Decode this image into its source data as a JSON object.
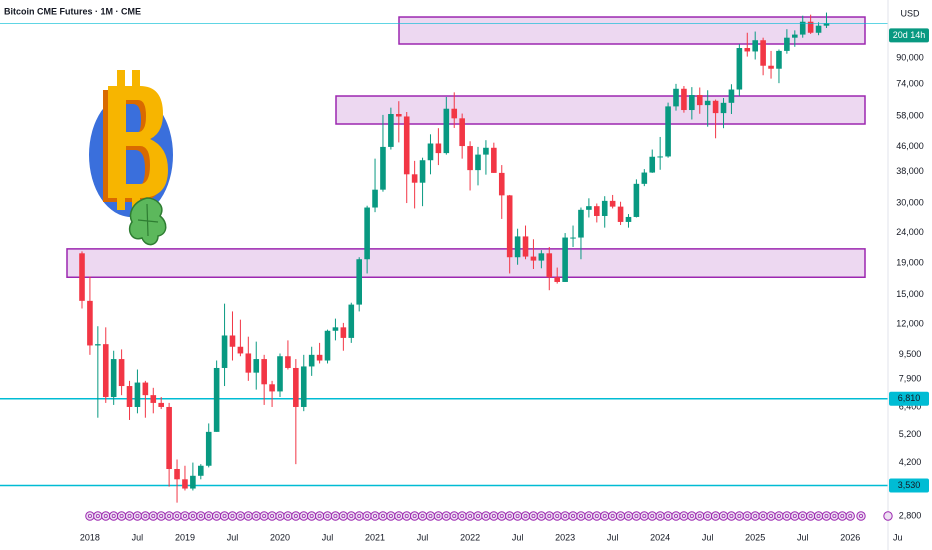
{
  "chart_data": {
    "type": "candlestick",
    "title": "Bitcoin CME Futures · 1M · CME",
    "currency": "USD",
    "countdown": "20d 14h",
    "log_scale": true,
    "grid": false,
    "up_color": "#089981",
    "down_color": "#f23645",
    "categories": [
      null,
      "2018",
      null,
      null,
      null,
      null,
      null,
      "Jul",
      null,
      null,
      null,
      null,
      null,
      "2019",
      null,
      null,
      null,
      null,
      null,
      "Jul",
      null,
      null,
      null,
      null,
      null,
      "2020",
      null,
      null,
      null,
      null,
      null,
      "Jul",
      null,
      null,
      null,
      null,
      null,
      "2021",
      null,
      null,
      null,
      null,
      null,
      "Jul",
      null,
      null,
      null,
      null,
      null,
      "2022",
      null,
      null,
      null,
      null,
      null,
      "Jul",
      null,
      null,
      null,
      null,
      null,
      "2023",
      null,
      null,
      null,
      null,
      null,
      "Jul",
      null,
      null,
      null,
      null,
      null,
      "2024",
      null,
      null,
      null,
      null,
      null,
      "Jul",
      null,
      null,
      null,
      null,
      null,
      "2025",
      null,
      null,
      null,
      null,
      null,
      "Jul",
      null,
      null,
      null,
      null,
      null,
      "2026",
      null,
      null,
      null,
      null,
      null,
      "Ju"
    ],
    "open": [
      20500,
      14300,
      10200,
      10300,
      6900,
      9200,
      7500,
      6400,
      7700,
      7000,
      6600,
      6400,
      4000,
      3700,
      3450,
      3800,
      4100,
      5300,
      8600,
      11000,
      10100,
      9600,
      8300,
      9200,
      7600,
      7200,
      9400,
      8600,
      6400,
      8700,
      9500,
      9100,
      11400,
      11700,
      10800,
      13900,
      19600,
      29000,
      33200,
      45900,
      58900,
      57800,
      37300,
      35000,
      41500,
      47100,
      43800,
      61300,
      57000,
      46200,
      38500,
      43300,
      45600,
      37700,
      31800,
      19900,
      23300,
      20000,
      19400,
      20500,
      17100,
      16500,
      23100,
      23100,
      28500,
      29300,
      27200,
      30500,
      29200,
      26000,
      27000,
      34700,
      37800,
      42600,
      42700,
      62400,
      71300,
      60700,
      68000,
      63000,
      65100,
      59300,
      64100,
      70900,
      97100,
      94600,
      103000,
      84900,
      83000,
      95000,
      105000,
      107500,
      118500,
      109000,
      115000,
      null,
      null,
      null,
      null,
      null,
      null,
      null,
      null,
      null
    ],
    "high": [
      20800,
      17200,
      11800,
      11700,
      9800,
      9900,
      7800,
      8500,
      7800,
      7400,
      6900,
      6600,
      4300,
      4100,
      4200,
      4150,
      5650,
      9100,
      14000,
      13200,
      12400,
      10900,
      10500,
      9500,
      7800,
      9600,
      10600,
      9200,
      9500,
      10100,
      10400,
      11500,
      12500,
      12100,
      14100,
      19900,
      29400,
      42000,
      58500,
      61800,
      64900,
      59800,
      41300,
      42300,
      50500,
      52900,
      67000,
      69400,
      59100,
      47900,
      45900,
      48300,
      47400,
      40000,
      31900,
      24700,
      25300,
      22800,
      21000,
      21500,
      18400,
      23900,
      25300,
      29000,
      31100,
      29900,
      31600,
      31900,
      30300,
      27600,
      35900,
      38800,
      45000,
      49500,
      64200,
      74000,
      72800,
      72200,
      72000,
      70500,
      65700,
      66500,
      73800,
      100000,
      109000,
      110000,
      105000,
      95000,
      96000,
      112000,
      111000,
      124000,
      125000,
      118000,
      127000,
      null,
      null,
      null,
      null,
      null,
      null,
      null,
      null,
      null
    ],
    "low": [
      13500,
      9500,
      5900,
      6600,
      6500,
      7000,
      5800,
      6100,
      5900,
      6100,
      6300,
      3500,
      3100,
      3400,
      3400,
      3700,
      4050,
      5300,
      7500,
      9100,
      9400,
      7800,
      7300,
      6500,
      6400,
      6900,
      8500,
      4150,
      6200,
      8100,
      8900,
      8900,
      10600,
      9800,
      10400,
      13200,
      17600,
      28000,
      32700,
      45000,
      47500,
      30000,
      28800,
      29300,
      37300,
      40000,
      43300,
      53000,
      42000,
      33000,
      34300,
      37200,
      37700,
      26600,
      17600,
      18800,
      19600,
      18200,
      18300,
      15500,
      16300,
      16500,
      21500,
      19600,
      26900,
      25900,
      24900,
      28800,
      25400,
      24900,
      26900,
      34100,
      37700,
      38600,
      42300,
      60400,
      59500,
      56500,
      59000,
      53500,
      49000,
      52900,
      58900,
      67400,
      91000,
      89000,
      79000,
      77000,
      74400,
      93000,
      98000,
      105000,
      108000,
      107000,
      113000,
      null,
      null,
      null,
      null,
      null,
      null,
      null,
      null,
      null
    ],
    "close": [
      14300,
      10200,
      10300,
      6900,
      9200,
      7500,
      6400,
      7700,
      7000,
      6600,
      6400,
      4000,
      3700,
      3450,
      3800,
      4100,
      5300,
      8600,
      11000,
      10100,
      9600,
      8300,
      9200,
      7600,
      7200,
      9400,
      8600,
      6400,
      8700,
      9500,
      9100,
      11400,
      11700,
      10800,
      13900,
      19600,
      29000,
      33200,
      45900,
      58900,
      57800,
      37300,
      35000,
      41500,
      47100,
      43800,
      61300,
      57000,
      46200,
      38500,
      43300,
      45600,
      37700,
      31800,
      19900,
      23300,
      20000,
      19400,
      20500,
      17100,
      16500,
      23100,
      23100,
      28500,
      29300,
      27200,
      30500,
      29200,
      26000,
      27000,
      34700,
      37800,
      42600,
      42700,
      62400,
      71300,
      60700,
      68000,
      63000,
      65100,
      59300,
      64100,
      70900,
      97100,
      94600,
      103000,
      84900,
      83000,
      95000,
      105000,
      107500,
      118500,
      109000,
      115000,
      117000,
      null,
      null,
      null,
      null,
      null,
      null,
      null,
      null,
      null
    ],
    "ylim": [
      2520,
      139700
    ],
    "yticks": [
      {
        "value": 2800,
        "label": "2,800"
      },
      {
        "value": 4200,
        "label": "4,200"
      },
      {
        "value": 5200,
        "label": "5,200"
      },
      {
        "value": 6400,
        "label": "6,400"
      },
      {
        "value": 7900,
        "label": "7,900"
      },
      {
        "value": 9500,
        "label": "9,500"
      },
      {
        "value": 12000,
        "label": "12,000"
      },
      {
        "value": 15000,
        "label": "15,000"
      },
      {
        "value": 19000,
        "label": "19,000"
      },
      {
        "value": 24000,
        "label": "24,000"
      },
      {
        "value": 30000,
        "label": "30,000"
      },
      {
        "value": 38000,
        "label": "38,000"
      },
      {
        "value": 46000,
        "label": "46,000"
      },
      {
        "value": 58000,
        "label": "58,000"
      },
      {
        "value": 74000,
        "label": "74,000"
      },
      {
        "value": 90000,
        "label": "90,000"
      }
    ],
    "zones": [
      {
        "low": 100100,
        "high": 122800
      },
      {
        "low": 54600,
        "high": 67500
      },
      {
        "low": 17100,
        "high": 21200
      }
    ],
    "zone_color": "#9c27b0",
    "hlines": [
      {
        "value": 6810,
        "label": "6,810"
      },
      {
        "value": 3530,
        "label": "3,530"
      }
    ],
    "hline_color": "#00bcd4"
  }
}
